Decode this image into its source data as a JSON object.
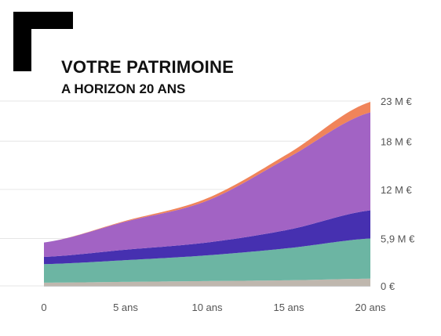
{
  "chart_data": {
    "type": "area",
    "title": "VOTRE PATRIMOINE",
    "subtitle": "A HORIZON 20 ANS",
    "stacked": true,
    "x": [
      0,
      5,
      10,
      15,
      20
    ],
    "x_tick_labels": [
      "0",
      "5 ans",
      "10 ans",
      "15 ans",
      "20 ans"
    ],
    "y_ticks": [
      0,
      5.9,
      12,
      18,
      23
    ],
    "y_tick_labels": [
      "0 €",
      "5,9 M €",
      "12 M €",
      "18 M €",
      "23 M €"
    ],
    "ylim": [
      0,
      23
    ],
    "unit": "M €",
    "grid": true,
    "series": [
      {
        "color": "#bfb7ae",
        "values": [
          0.4,
          0.5,
          0.6,
          0.7,
          0.9
        ]
      },
      {
        "color": "#6cb5a3",
        "values": [
          2.3,
          2.7,
          3.2,
          4.0,
          5.0
        ]
      },
      {
        "color": "#4630b0",
        "values": [
          0.9,
          1.3,
          1.6,
          2.3,
          3.5
        ]
      },
      {
        "color": "#a263c4",
        "values": [
          1.8,
          3.5,
          5.2,
          9.0,
          12.2
        ]
      },
      {
        "color": "#f0845a",
        "values": [
          0.0,
          0.1,
          0.3,
          0.5,
          1.3
        ]
      }
    ]
  }
}
